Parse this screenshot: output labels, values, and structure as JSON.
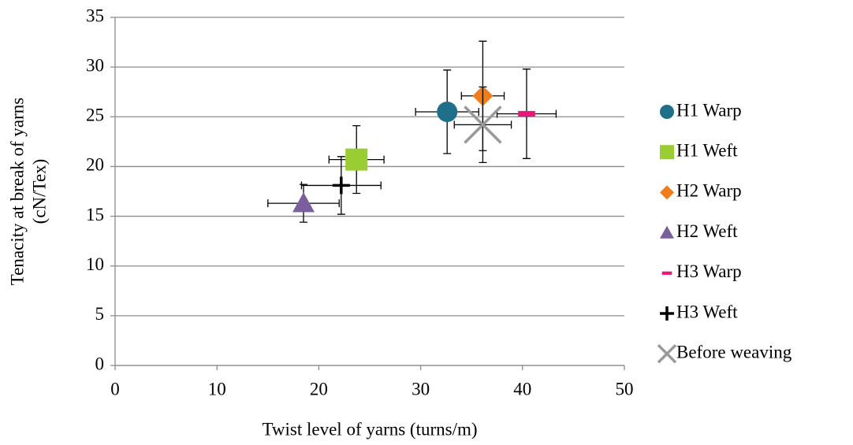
{
  "chart_data": {
    "type": "scatter",
    "xlabel": "Twist level of yarns (turns/m)",
    "ylabel": [
      "Tenacity at break  of yarns",
      "(cN/Tex)"
    ],
    "xlim": [
      0,
      50
    ],
    "xticks": [
      0,
      10,
      20,
      30,
      40,
      50
    ],
    "ylim": [
      0,
      35
    ],
    "yticks": [
      0,
      5,
      10,
      15,
      20,
      25,
      30,
      35
    ],
    "grid": true,
    "legend": "right",
    "series": [
      {
        "name": "H1 Warp",
        "color": "#1f6f8b",
        "marker": "circle",
        "x": [
          32.6
        ],
        "values": [
          25.5
        ],
        "xerr": [
          3.1
        ],
        "yerr": [
          4.2
        ]
      },
      {
        "name": "H1 Weft",
        "color": "#9acd32",
        "marker": "square",
        "x": [
          23.7
        ],
        "values": [
          20.7
        ],
        "xerr": [
          2.7
        ],
        "yerr": [
          3.4
        ]
      },
      {
        "name": "H2 Warp",
        "color": "#f07d1a",
        "marker": "diamond",
        "x": [
          36.1
        ],
        "values": [
          27.1
        ],
        "xerr": [
          2.1
        ],
        "yerr": [
          5.5
        ]
      },
      {
        "name": "H2 Weft",
        "color": "#7b5f9d",
        "marker": "triangle",
        "x": [
          18.5
        ],
        "values": [
          16.3
        ],
        "xerr": [
          3.5
        ],
        "yerr": [
          1.9
        ]
      },
      {
        "name": "H3 Warp",
        "color": "#e8177a",
        "marker": "dash",
        "x": [
          40.4
        ],
        "values": [
          25.3
        ],
        "xerr": [
          2.9
        ],
        "yerr": [
          4.5
        ]
      },
      {
        "name": "H3 Weft",
        "color": "#000000",
        "marker": "plus",
        "x": [
          22.2
        ],
        "values": [
          18.1
        ],
        "xerr": [
          3.9
        ],
        "yerr": [
          2.9
        ]
      },
      {
        "name": "Before weaving",
        "color": "#999999",
        "marker": "x",
        "x": [
          36.1
        ],
        "values": [
          24.2
        ],
        "xerr": [
          2.8
        ],
        "yerr": [
          3.8
        ]
      }
    ]
  }
}
